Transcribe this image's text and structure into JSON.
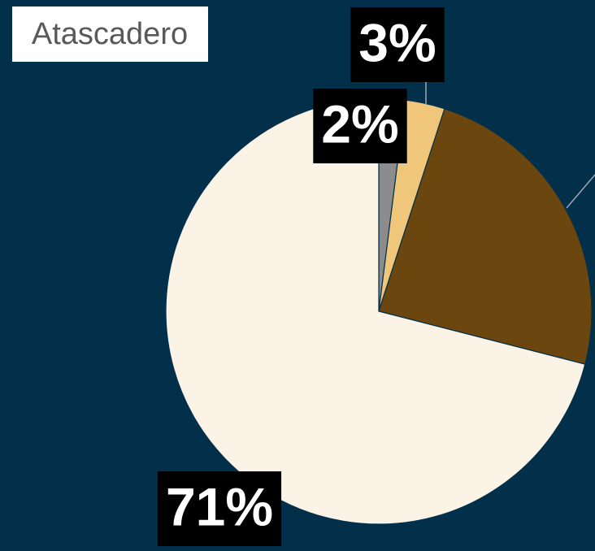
{
  "chart_data": {
    "type": "pie",
    "title": "Atascadero",
    "categories": [
      null,
      null,
      null,
      null
    ],
    "values": [
      2,
      3,
      24,
      71
    ],
    "value_labels": [
      "2%",
      "3%",
      null,
      "71%"
    ],
    "colors": [
      "#8c8c8c",
      "#f0c77a",
      "#6b460e",
      "#faf3e6"
    ]
  }
}
